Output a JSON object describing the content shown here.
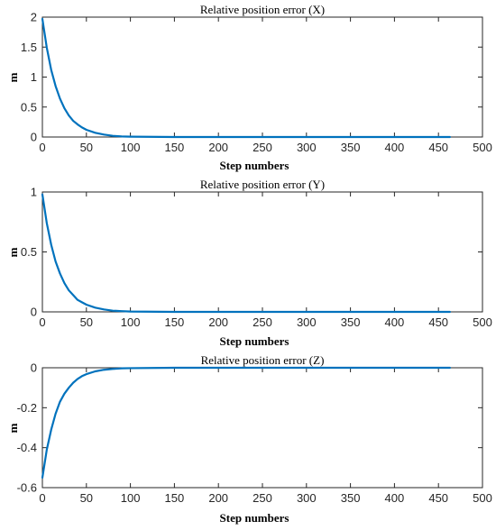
{
  "chart_data": [
    {
      "type": "line",
      "title": "Relative position error (X)",
      "xlabel": "Step numbers",
      "ylabel": "m",
      "xlim": [
        0,
        500
      ],
      "ylim": [
        0,
        2
      ],
      "xticks": [
        0,
        50,
        100,
        150,
        200,
        250,
        300,
        350,
        400,
        450,
        500
      ],
      "yticks": [
        0,
        0.5,
        1,
        1.5,
        2
      ],
      "ytick_labels": [
        "0",
        "0.5",
        "1",
        "1.5",
        "2"
      ],
      "grid": false,
      "line_color": "#0072BD",
      "series": [
        {
          "x": [
            0,
            5,
            10,
            15,
            20,
            25,
            30,
            35,
            40,
            45,
            50,
            60,
            70,
            80,
            90,
            100,
            150,
            200,
            250,
            300,
            350,
            400,
            463
          ],
          "values": [
            1.97,
            1.49,
            1.12,
            0.85,
            0.64,
            0.48,
            0.36,
            0.27,
            0.21,
            0.16,
            0.12,
            0.07,
            0.04,
            0.02,
            0.01,
            0.006,
            0.0,
            0.0,
            0.0,
            0.0,
            0.0,
            0.0,
            0.0
          ]
        }
      ]
    },
    {
      "type": "line",
      "title": "Relative position error (Y)",
      "xlabel": "Step numbers",
      "ylabel": "m",
      "xlim": [
        0,
        500
      ],
      "ylim": [
        0,
        1
      ],
      "xticks": [
        0,
        50,
        100,
        150,
        200,
        250,
        300,
        350,
        400,
        450,
        500
      ],
      "yticks": [
        0,
        0.5,
        1
      ],
      "ytick_labels": [
        "0",
        "0.5",
        "1"
      ],
      "grid": false,
      "line_color": "#0072BD",
      "series": [
        {
          "x": [
            0,
            5,
            10,
            15,
            20,
            25,
            30,
            35,
            40,
            45,
            50,
            60,
            70,
            80,
            90,
            100,
            150,
            200,
            250,
            300,
            350,
            400,
            463
          ],
          "values": [
            0.98,
            0.74,
            0.56,
            0.42,
            0.32,
            0.24,
            0.18,
            0.14,
            0.1,
            0.08,
            0.06,
            0.035,
            0.02,
            0.01,
            0.006,
            0.003,
            0.0,
            0.0,
            0.0,
            0.0,
            0.0,
            0.0,
            0.0
          ]
        }
      ]
    },
    {
      "type": "line",
      "title": "Relative position error (Z)",
      "xlabel": "Step numbers",
      "ylabel": "m",
      "xlim": [
        0,
        500
      ],
      "ylim": [
        -0.6,
        0
      ],
      "xticks": [
        0,
        50,
        100,
        150,
        200,
        250,
        300,
        350,
        400,
        450,
        500
      ],
      "yticks": [
        -0.6,
        -0.4,
        -0.2,
        0
      ],
      "ytick_labels": [
        "-0.6",
        "-0.4",
        "-0.2",
        "0"
      ],
      "grid": false,
      "line_color": "#0072BD",
      "series": [
        {
          "x": [
            0,
            5,
            10,
            15,
            20,
            25,
            30,
            35,
            40,
            45,
            50,
            60,
            70,
            80,
            90,
            100,
            150,
            200,
            250,
            300,
            350,
            400,
            463
          ],
          "values": [
            -0.55,
            -0.41,
            -0.31,
            -0.23,
            -0.17,
            -0.13,
            -0.1,
            -0.075,
            -0.056,
            -0.042,
            -0.032,
            -0.018,
            -0.01,
            -0.006,
            -0.003,
            -0.002,
            0.0,
            0.0,
            0.0,
            0.0,
            0.0,
            0.0,
            0.0
          ]
        }
      ]
    }
  ]
}
